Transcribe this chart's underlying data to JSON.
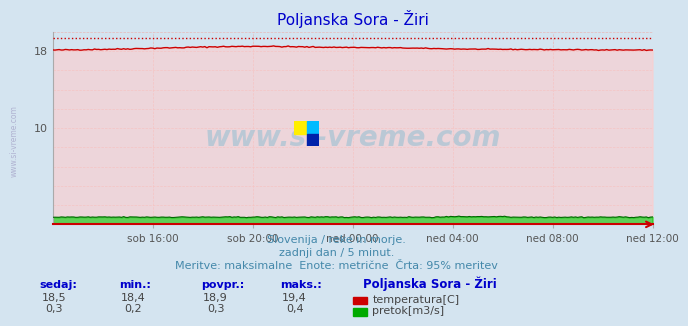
{
  "title": "Poljanska Sora - Žiri",
  "fig_bg_color": "#d4e4f0",
  "plot_bg_color": "#d4e4f0",
  "xlim": [
    0,
    288
  ],
  "ylim": [
    0,
    20
  ],
  "xtick_labels": [
    "sob 16:00",
    "sob 20:00",
    "ned 00:00",
    "ned 04:00",
    "ned 08:00",
    "ned 12:00"
  ],
  "xtick_positions": [
    48,
    96,
    144,
    192,
    240,
    288
  ],
  "temp_color": "#cc0000",
  "flow_color": "#00aa00",
  "temp_max_val": 19.4,
  "subtitle1": "Slovenija / reke in morje.",
  "subtitle2": "zadnji dan / 5 minut.",
  "subtitle3": "Meritve: maksimalne  Enote: metrične  Črta: 95% meritev",
  "watermark": "www.si-vreme.com",
  "title_color": "#0000cc",
  "subtitle_color": "#4488aa",
  "label_color": "#0000cc",
  "station_label": "Poljanska Sora - Žiri",
  "legend_temp": "temperatura[C]",
  "legend_flow": "pretok[m3/s]",
  "col_headers": [
    "sedaj:",
    "min.:",
    "povpr.:",
    "maks.:"
  ],
  "temp_vals": [
    "18,5",
    "18,4",
    "18,9",
    "19,4"
  ],
  "flow_vals": [
    "0,3",
    "0,2",
    "0,3",
    "0,4"
  ]
}
